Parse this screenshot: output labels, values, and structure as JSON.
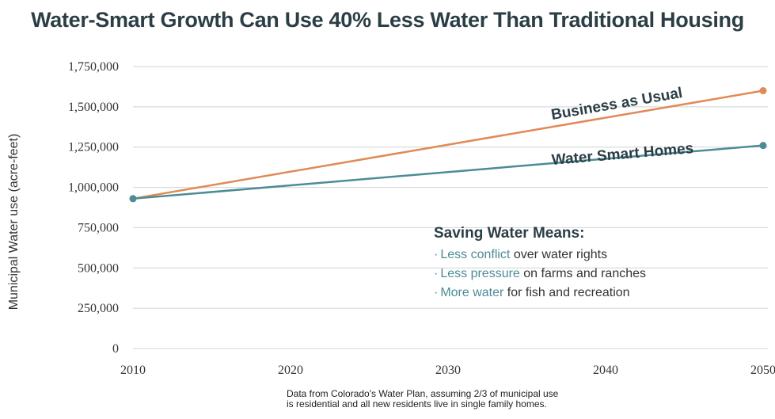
{
  "chart_data": {
    "type": "line",
    "title": "Water-Smart Growth Can Use 40% Less Water Than Traditional Housing",
    "ylabel": "Municipal Water use (acre-feet)",
    "xlabel": "",
    "x": [
      2010,
      2050
    ],
    "x_ticks": [
      "2010",
      "2020",
      "2030",
      "2040",
      "2050"
    ],
    "y_ticks": [
      "0",
      "250,000",
      "500,000",
      "750,000",
      "1,000,000",
      "1,250,000",
      "1,500,000",
      "1,750,000"
    ],
    "ylim": [
      0,
      1750000
    ],
    "xlim": [
      2010,
      2050
    ],
    "grid": true,
    "series": [
      {
        "name": "Business as Usual",
        "color": "#e08a55",
        "values": [
          930000,
          1600000
        ]
      },
      {
        "name": "Water Smart Homes",
        "color": "#4c8c96",
        "values": [
          930000,
          1260000
        ]
      }
    ]
  },
  "callout": {
    "title": "Saving Water Means:",
    "items": [
      {
        "bullet": "·",
        "highlight": "Less conflict",
        "rest": " over water rights"
      },
      {
        "bullet": "·",
        "highlight": "Less pressure",
        "rest": " on farms and ranches"
      },
      {
        "bullet": "·",
        "highlight": "More water",
        "rest": " for fish and recreation"
      }
    ]
  },
  "source": {
    "line1": "Data from Colorado's Water Plan, assuming 2/3 of municipal use",
    "line2": "is residential and all new residents live in single family homes."
  },
  "colors": {
    "orange": "#e08a55",
    "teal": "#4c8c96",
    "grid": "#cfd4d4",
    "title": "#2c3e45"
  }
}
